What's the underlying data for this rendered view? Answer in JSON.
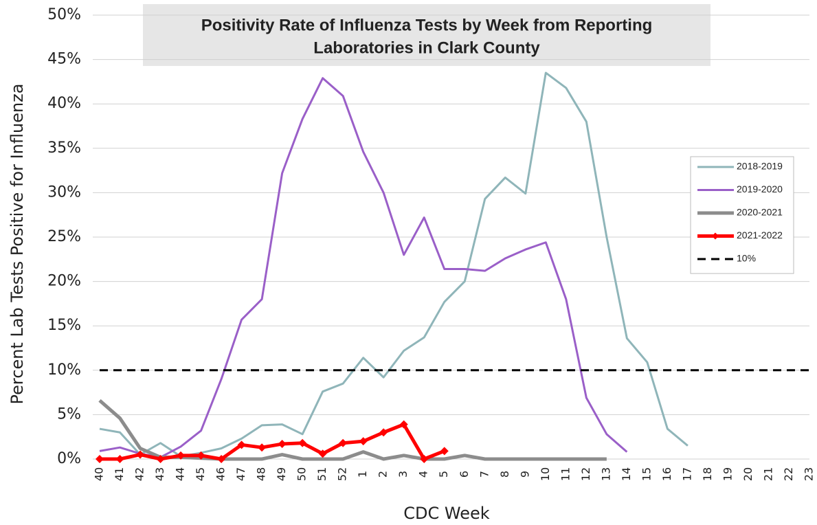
{
  "chart_data": {
    "type": "line",
    "title": [
      "Positivity Rate of Influenza Tests by Week from Reporting",
      "Laboratories in Clark County"
    ],
    "x_label": "CDC Week",
    "y_label": "Percent Lab Tests Positive for Influenza",
    "categories": [
      "40",
      "41",
      "42",
      "43",
      "44",
      "45",
      "46",
      "47",
      "48",
      "49",
      "50",
      "51",
      "52",
      "1",
      "2",
      "3",
      "4",
      "5",
      "6",
      "7",
      "8",
      "9",
      "10",
      "11",
      "12",
      "13",
      "14",
      "15",
      "16",
      "17",
      "18",
      "19",
      "20",
      "21",
      "22",
      "23"
    ],
    "ylim": [
      0,
      50
    ],
    "yticks": [
      {
        "value": 0,
        "label": "0%"
      },
      {
        "value": 5,
        "label": "5%"
      },
      {
        "value": 10,
        "label": "10%"
      },
      {
        "value": 15,
        "label": "15%"
      },
      {
        "value": 20,
        "label": "20%"
      },
      {
        "value": 25,
        "label": "25%"
      },
      {
        "value": 30,
        "label": "30%"
      },
      {
        "value": 35,
        "label": "35%"
      },
      {
        "value": 40,
        "label": "40%"
      },
      {
        "value": 45,
        "label": "45%"
      },
      {
        "value": 50,
        "label": "50%"
      }
    ],
    "grid": true,
    "legend": "right",
    "series": [
      {
        "name": "2018-2019",
        "color": "#8fb5b9",
        "width": 3,
        "values": [
          3.4,
          3.0,
          0.5,
          1.8,
          0.3,
          0.7,
          1.2,
          2.3,
          3.8,
          3.9,
          2.8,
          7.6,
          8.5,
          11.4,
          9.2,
          12.2,
          13.7,
          17.7,
          20.0,
          29.3,
          31.7,
          29.9,
          43.5,
          41.8,
          38.0,
          25.0,
          13.6,
          10.9,
          3.4,
          1.5,
          null,
          null,
          null,
          null,
          null,
          null
        ]
      },
      {
        "name": "2019-2020",
        "color": "#9a5fc8",
        "width": 3,
        "values": [
          0.9,
          1.3,
          0.6,
          0.2,
          1.4,
          3.2,
          9.0,
          15.7,
          18.0,
          32.2,
          38.3,
          42.9,
          40.9,
          34.6,
          30.0,
          23.0,
          27.2,
          21.4,
          21.4,
          21.2,
          22.6,
          23.6,
          24.4,
          18.0,
          6.9,
          2.8,
          0.8,
          null,
          null,
          null,
          null,
          null,
          null,
          null,
          null,
          null
        ]
      },
      {
        "name": "2020-2021",
        "color": "#8c8c8c",
        "width": 5,
        "values": [
          6.6,
          4.6,
          1.2,
          0.2,
          0.2,
          0.1,
          0,
          0,
          0,
          0.5,
          0,
          0,
          0,
          0.8,
          0,
          0.4,
          0,
          0,
          0.4,
          0,
          0,
          0,
          0,
          0,
          0,
          0,
          null,
          null,
          null,
          null,
          null,
          null,
          null,
          null,
          null,
          null
        ]
      },
      {
        "name": "2021-2022",
        "color": "#ff0000",
        "width": 5,
        "markers": true,
        "values": [
          0,
          0,
          0.5,
          0,
          0.4,
          0.4,
          0,
          1.6,
          1.3,
          1.7,
          1.8,
          0.6,
          1.8,
          2.0,
          3.0,
          3.9,
          0,
          0.9,
          null,
          null,
          null,
          null,
          null,
          null,
          null,
          null,
          null,
          null,
          null,
          null,
          null,
          null,
          null,
          null,
          null,
          null
        ]
      },
      {
        "name": "10%",
        "color": "#000000",
        "width": 3,
        "dash": true,
        "values": [
          10,
          10,
          10,
          10,
          10,
          10,
          10,
          10,
          10,
          10,
          10,
          10,
          10,
          10,
          10,
          10,
          10,
          10,
          10,
          10,
          10,
          10,
          10,
          10,
          10,
          10,
          10,
          10,
          10,
          10,
          10,
          10,
          10,
          10,
          10,
          10
        ]
      }
    ]
  }
}
